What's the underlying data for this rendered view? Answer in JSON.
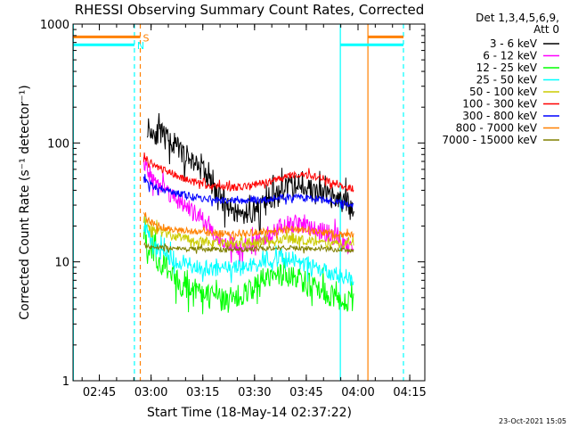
{
  "chart_data": {
    "type": "line",
    "title": "RHESSI Observing Summary Count Rates, Corrected",
    "xlabel": "Start Time (18-May-14 02:37:22)",
    "ylabel": "Corrected Count Rate (s⁻¹ detector⁻¹)",
    "yscale": "log",
    "ylim": [
      1,
      1000
    ],
    "xlim_minutes_after_start": [
      0,
      102
    ],
    "x_ticks": [
      {
        "label": "02:45",
        "minutes": 7.63
      },
      {
        "label": "03:00",
        "minutes": 22.63
      },
      {
        "label": "03:15",
        "minutes": 37.63
      },
      {
        "label": "03:30",
        "minutes": 52.63
      },
      {
        "label": "03:45",
        "minutes": 67.63
      },
      {
        "label": "04:00",
        "minutes": 82.63
      },
      {
        "label": "04:15",
        "minutes": 97.63
      }
    ],
    "y_ticks": [
      {
        "label": "1",
        "value": 1
      },
      {
        "label": "10",
        "value": 10
      },
      {
        "label": "100",
        "value": 100
      },
      {
        "label": "1000",
        "value": 1000
      }
    ],
    "legend_header": [
      "Det 1,3,4,5,6,9,",
      "Att 0"
    ],
    "legend_position": "right",
    "series": [
      {
        "name": "3 - 6 keV",
        "color": "#000000",
        "noise": 0.1,
        "x": [
          21.5,
          23,
          26,
          29,
          32,
          35,
          38,
          41,
          44,
          47,
          50,
          53,
          56,
          59,
          62,
          65,
          68,
          71,
          74,
          77,
          80,
          81.5
        ],
        "y": [
          140,
          125,
          115,
          100,
          80,
          70,
          58,
          40,
          32,
          26,
          25,
          27,
          30,
          35,
          42,
          45,
          42,
          38,
          35,
          33,
          31,
          28
        ]
      },
      {
        "name": "6 - 12 keV",
        "color": "#ff00ff",
        "noise": 0.08,
        "x": [
          20.5,
          22,
          25,
          28,
          31,
          34,
          37,
          40,
          43,
          46,
          49,
          52,
          55,
          58,
          61,
          64,
          67,
          70,
          73,
          76,
          79,
          81.5
        ],
        "y": [
          70,
          55,
          45,
          38,
          32,
          27,
          23,
          19,
          15.5,
          14,
          13,
          14,
          16,
          18,
          20,
          21,
          20,
          19,
          18,
          16,
          14,
          13
        ]
      },
      {
        "name": "12 - 25 keV",
        "color": "#00ff00",
        "noise": 0.1,
        "x": [
          20.5,
          22,
          25,
          28,
          31,
          34,
          37,
          40,
          43,
          46,
          49,
          52,
          55,
          58,
          61,
          64,
          67,
          70,
          73,
          76,
          79,
          81.5
        ],
        "y": [
          18,
          13,
          10,
          8,
          6.5,
          6,
          5.5,
          5,
          4.8,
          4.9,
          5.2,
          6,
          7,
          7.8,
          8,
          7.5,
          6.8,
          6,
          5.5,
          5,
          4.8,
          4.6
        ]
      },
      {
        "name": "25 - 50 keV",
        "color": "#00ffff",
        "noise": 0.07,
        "x": [
          20.5,
          22,
          25,
          28,
          31,
          34,
          37,
          40,
          43,
          46,
          49,
          52,
          55,
          58,
          61,
          64,
          67,
          70,
          73,
          76,
          79,
          81.5
        ],
        "y": [
          20,
          16,
          12.5,
          11,
          10,
          9.5,
          9,
          8.7,
          8.6,
          8.7,
          8.9,
          9.3,
          10,
          10.5,
          10.7,
          10.4,
          9.8,
          9,
          8.3,
          7.8,
          7.5,
          7.3
        ]
      },
      {
        "name": "50 - 100 keV",
        "color": "#cccc00",
        "noise": 0.04,
        "x": [
          20.5,
          22,
          25,
          28,
          31,
          34,
          37,
          40,
          43,
          46,
          49,
          52,
          55,
          58,
          61,
          64,
          67,
          70,
          73,
          76,
          79,
          81.5
        ],
        "y": [
          24,
          20,
          18,
          17,
          16,
          15.5,
          15,
          14.5,
          14.3,
          14.3,
          14.4,
          14.6,
          15,
          15.4,
          15.6,
          15.5,
          15.2,
          14.8,
          14.5,
          14.2,
          14,
          13.8
        ]
      },
      {
        "name": "100 - 300 keV",
        "color": "#ff0000",
        "noise": 0.03,
        "x": [
          20.5,
          22,
          25,
          28,
          31,
          34,
          37,
          40,
          43,
          46,
          49,
          52,
          55,
          58,
          61,
          64,
          67,
          70,
          73,
          76,
          79,
          81.5
        ],
        "y": [
          80,
          70,
          62,
          56,
          52,
          48,
          45,
          43,
          42,
          42,
          43,
          44,
          46,
          48,
          51,
          53,
          54,
          52,
          49,
          46,
          43,
          41
        ]
      },
      {
        "name": "300 - 800 keV",
        "color": "#0000ff",
        "noise": 0.03,
        "x": [
          20.5,
          22,
          25,
          28,
          31,
          34,
          37,
          40,
          43,
          46,
          49,
          52,
          55,
          58,
          61,
          64,
          67,
          70,
          73,
          76,
          79,
          81.5
        ],
        "y": [
          50,
          45,
          42,
          39,
          37,
          35.5,
          34.5,
          33.5,
          33,
          32.8,
          32.6,
          32.8,
          33.3,
          34,
          34.7,
          35,
          34.7,
          34,
          33,
          32,
          31,
          30
        ]
      },
      {
        "name": "800 - 7000 keV",
        "color": "#ff8000",
        "noise": 0.03,
        "x": [
          20.5,
          22,
          25,
          28,
          31,
          34,
          37,
          40,
          43,
          46,
          49,
          52,
          55,
          58,
          61,
          64,
          67,
          70,
          73,
          76,
          79,
          81.5
        ],
        "y": [
          26,
          22,
          20,
          19,
          18.5,
          18,
          17.7,
          17.4,
          17.3,
          17.3,
          17.4,
          17.6,
          17.9,
          18.2,
          18.5,
          18.6,
          18.4,
          18,
          17.6,
          17.2,
          16.9,
          16.6
        ]
      },
      {
        "name": "7000 - 15000 keV",
        "color": "#808000",
        "noise": 0.02,
        "x": [
          20.5,
          22,
          25,
          28,
          31,
          34,
          37,
          40,
          43,
          46,
          49,
          52,
          55,
          58,
          61,
          64,
          67,
          70,
          73,
          76,
          79,
          81.5
        ],
        "y": [
          14,
          13.5,
          13.2,
          13,
          12.9,
          12.8,
          12.8,
          12.7,
          12.7,
          12.7,
          12.7,
          12.8,
          12.9,
          13,
          13.1,
          13.1,
          13,
          12.9,
          12.8,
          12.7,
          12.6,
          12.5
        ]
      }
    ],
    "flags": [
      {
        "label": "S",
        "color": "#ff8000",
        "value": 780,
        "segments": [
          [
            -1,
            19.5
          ],
          [
            85.5,
            95.8
          ]
        ]
      },
      {
        "label": "N",
        "color": "#00ffff",
        "value": 670,
        "segments": [
          [
            -1,
            17.8
          ],
          [
            77.5,
            95.8
          ]
        ]
      }
    ],
    "vlines": [
      {
        "minutes": 0.1,
        "color": "#00ffff",
        "style": "solid"
      },
      {
        "minutes": 17.8,
        "color": "#00ffff",
        "style": "dashed"
      },
      {
        "minutes": 19.5,
        "color": "#ff8000",
        "style": "dashed"
      },
      {
        "minutes": 77.5,
        "color": "#00ffff",
        "style": "solid"
      },
      {
        "minutes": 85.5,
        "color": "#ff8000",
        "style": "solid"
      },
      {
        "minutes": 95.8,
        "color": "#00ffff",
        "style": "dashed"
      }
    ]
  },
  "footer_timestamp": "23-Oct-2021 15:05"
}
